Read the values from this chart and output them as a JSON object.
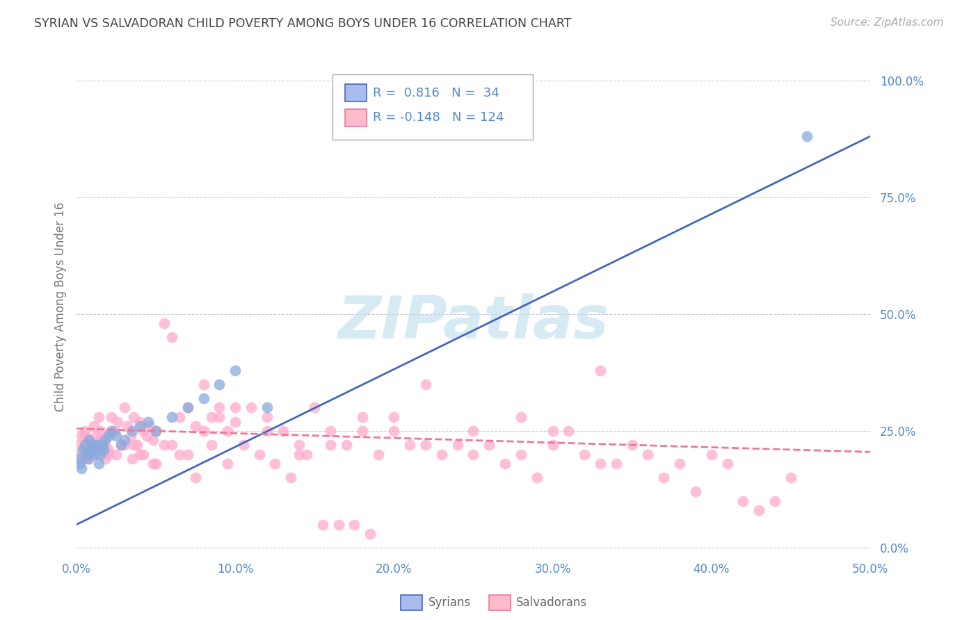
{
  "title": "SYRIAN VS SALVADORAN CHILD POVERTY AMONG BOYS UNDER 16 CORRELATION CHART",
  "source": "Source: ZipAtlas.com",
  "ylabel": "Child Poverty Among Boys Under 16",
  "xlabel_ticks": [
    "0.0%",
    "10.0%",
    "20.0%",
    "30.0%",
    "40.0%",
    "50.0%"
  ],
  "xlabel_vals": [
    0.0,
    0.1,
    0.2,
    0.3,
    0.4,
    0.5
  ],
  "ylabel_ticks": [
    "100.0%",
    "75.0%",
    "50.0%",
    "25.0%",
    "0.0%"
  ],
  "ylabel_right_vals": [
    1.0,
    0.75,
    0.5,
    0.25,
    0.0
  ],
  "xlim": [
    0.0,
    0.5
  ],
  "ylim": [
    -0.02,
    1.05
  ],
  "syrian_R": 0.816,
  "syrian_N": 34,
  "salvadoran_R": -0.148,
  "salvadoran_N": 124,
  "blue_color": "#88AADD",
  "pink_color": "#FFAACC",
  "trend_blue": "#4466BB",
  "trend_pink": "#EE7799",
  "axis_color": "#5588CC",
  "title_color": "#444444",
  "watermark_color": "#BBDDEE",
  "grid_color": "#CCCCCC",
  "background_color": "#FFFFFF",
  "legend_box_blue": "#AABBEE",
  "legend_box_pink": "#FFBBCC",
  "syrian_x": [
    0.001,
    0.002,
    0.003,
    0.004,
    0.005,
    0.006,
    0.007,
    0.008,
    0.009,
    0.01,
    0.011,
    0.012,
    0.013,
    0.014,
    0.015,
    0.016,
    0.017,
    0.018,
    0.02,
    0.022,
    0.025,
    0.028,
    0.03,
    0.035,
    0.04,
    0.045,
    0.05,
    0.06,
    0.07,
    0.08,
    0.09,
    0.1,
    0.12,
    0.46
  ],
  "syrian_y": [
    0.19,
    0.18,
    0.17,
    0.21,
    0.22,
    0.2,
    0.19,
    0.23,
    0.21,
    0.22,
    0.2,
    0.21,
    0.22,
    0.18,
    0.2,
    0.22,
    0.21,
    0.23,
    0.24,
    0.25,
    0.24,
    0.22,
    0.23,
    0.25,
    0.26,
    0.27,
    0.25,
    0.28,
    0.3,
    0.32,
    0.35,
    0.38,
    0.3,
    0.88
  ],
  "salvadoran_x": [
    0.001,
    0.002,
    0.003,
    0.004,
    0.005,
    0.006,
    0.007,
    0.008,
    0.009,
    0.01,
    0.011,
    0.012,
    0.013,
    0.014,
    0.015,
    0.016,
    0.017,
    0.018,
    0.019,
    0.02,
    0.022,
    0.024,
    0.026,
    0.028,
    0.03,
    0.032,
    0.034,
    0.036,
    0.038,
    0.04,
    0.042,
    0.044,
    0.046,
    0.048,
    0.05,
    0.055,
    0.06,
    0.065,
    0.07,
    0.075,
    0.08,
    0.085,
    0.09,
    0.095,
    0.1,
    0.11,
    0.12,
    0.13,
    0.14,
    0.15,
    0.16,
    0.17,
    0.18,
    0.19,
    0.2,
    0.21,
    0.22,
    0.23,
    0.24,
    0.25,
    0.26,
    0.27,
    0.28,
    0.29,
    0.3,
    0.31,
    0.32,
    0.33,
    0.34,
    0.35,
    0.36,
    0.37,
    0.38,
    0.39,
    0.4,
    0.41,
    0.42,
    0.43,
    0.44,
    0.45,
    0.005,
    0.008,
    0.01,
    0.012,
    0.015,
    0.018,
    0.02,
    0.025,
    0.03,
    0.035,
    0.04,
    0.05,
    0.06,
    0.07,
    0.08,
    0.09,
    0.1,
    0.12,
    0.14,
    0.16,
    0.18,
    0.2,
    0.22,
    0.25,
    0.28,
    0.3,
    0.33,
    0.036,
    0.042,
    0.048,
    0.055,
    0.065,
    0.075,
    0.085,
    0.095,
    0.105,
    0.115,
    0.125,
    0.135,
    0.145,
    0.155,
    0.165,
    0.175,
    0.185
  ],
  "salvadoran_y": [
    0.22,
    0.2,
    0.24,
    0.19,
    0.25,
    0.22,
    0.2,
    0.23,
    0.21,
    0.22,
    0.26,
    0.24,
    0.22,
    0.28,
    0.25,
    0.23,
    0.21,
    0.22,
    0.24,
    0.2,
    0.28,
    0.25,
    0.27,
    0.22,
    0.3,
    0.26,
    0.24,
    0.28,
    0.22,
    0.27,
    0.25,
    0.24,
    0.26,
    0.23,
    0.25,
    0.48,
    0.45,
    0.28,
    0.3,
    0.26,
    0.35,
    0.28,
    0.3,
    0.25,
    0.27,
    0.3,
    0.28,
    0.25,
    0.22,
    0.3,
    0.25,
    0.22,
    0.28,
    0.2,
    0.25,
    0.22,
    0.35,
    0.2,
    0.22,
    0.25,
    0.22,
    0.18,
    0.2,
    0.15,
    0.22,
    0.25,
    0.2,
    0.38,
    0.18,
    0.22,
    0.2,
    0.15,
    0.18,
    0.12,
    0.2,
    0.18,
    0.1,
    0.08,
    0.1,
    0.15,
    0.24,
    0.19,
    0.22,
    0.2,
    0.23,
    0.19,
    0.21,
    0.2,
    0.22,
    0.19,
    0.2,
    0.18,
    0.22,
    0.2,
    0.25,
    0.28,
    0.3,
    0.25,
    0.2,
    0.22,
    0.25,
    0.28,
    0.22,
    0.2,
    0.28,
    0.25,
    0.18,
    0.22,
    0.2,
    0.18,
    0.22,
    0.2,
    0.15,
    0.22,
    0.18,
    0.22,
    0.2,
    0.18,
    0.15,
    0.2,
    0.05,
    0.05,
    0.05,
    0.03
  ]
}
